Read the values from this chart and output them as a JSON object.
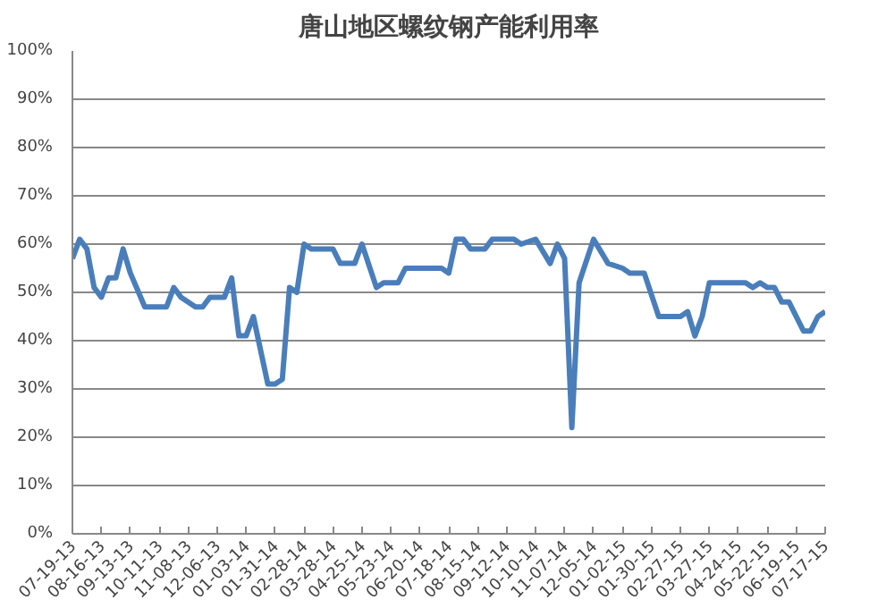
{
  "chart_data": {
    "type": "line",
    "title": "唐山地区螺纹钢产能利用率",
    "x": [
      "2013-07-19",
      "2013-07-26",
      "2013-08-02",
      "2013-08-09",
      "2013-08-16",
      "2013-08-23",
      "2013-08-30",
      "2013-09-06",
      "2013-09-13",
      "2013-09-27",
      "2013-10-18",
      "2013-10-25",
      "2013-11-01",
      "2013-11-15",
      "2013-11-22",
      "2013-11-29",
      "2013-12-13",
      "2013-12-20",
      "2013-12-27",
      "2014-01-03",
      "2014-01-10",
      "2014-01-24",
      "2014-01-31",
      "2014-02-07",
      "2014-02-14",
      "2014-02-21",
      "2014-02-28",
      "2014-03-07",
      "2014-03-28",
      "2014-04-04",
      "2014-04-18",
      "2014-04-25",
      "2014-05-09",
      "2014-05-16",
      "2014-05-30",
      "2014-06-06",
      "2014-07-11",
      "2014-07-18",
      "2014-07-25",
      "2014-08-01",
      "2014-08-08",
      "2014-08-22",
      "2014-08-29",
      "2014-09-19",
      "2014-09-26",
      "2014-10-10",
      "2014-10-24",
      "2014-10-31",
      "2014-11-07",
      "2014-11-14",
      "2014-11-21",
      "2014-12-05",
      "2014-12-19",
      "2015-01-02",
      "2015-01-09",
      "2015-01-23",
      "2015-02-06",
      "2015-02-27",
      "2015-03-06",
      "2015-03-13",
      "2015-03-20",
      "2015-03-27",
      "2015-05-01",
      "2015-05-08",
      "2015-05-15",
      "2015-05-22",
      "2015-05-29",
      "2015-06-05",
      "2015-06-12",
      "2015-06-26",
      "2015-07-03",
      "2015-07-10",
      "2015-07-17"
    ],
    "series": [
      {
        "color": "#4a7ebb",
        "values": [
          57,
          61,
          59,
          51,
          49,
          53,
          53,
          59,
          54,
          47,
          47,
          51,
          49,
          47,
          47,
          49,
          49,
          53,
          41,
          41,
          45,
          31,
          31,
          32,
          51,
          50,
          60,
          59,
          59,
          56,
          56,
          60,
          51,
          52,
          52,
          55,
          55,
          54,
          61,
          61,
          59,
          59,
          61,
          61,
          60,
          61,
          56,
          60,
          57,
          22,
          52,
          61,
          56,
          55,
          54,
          54,
          45,
          45,
          46,
          41,
          45,
          52,
          52,
          51,
          52,
          51,
          51,
          48,
          48,
          42,
          42,
          45,
          46
        ]
      }
    ],
    "ylim": [
      0,
      100
    ],
    "yticks": [
      {
        "value": 0,
        "label": "0%"
      },
      {
        "value": 10,
        "label": "10%"
      },
      {
        "value": 20,
        "label": "20%"
      },
      {
        "value": 30,
        "label": "30%"
      },
      {
        "value": 40,
        "label": "40%"
      },
      {
        "value": 50,
        "label": "50%"
      },
      {
        "value": 60,
        "label": "60%"
      },
      {
        "value": 70,
        "label": "70%"
      },
      {
        "value": 80,
        "label": "80%"
      },
      {
        "value": 90,
        "label": "90%"
      },
      {
        "value": 100,
        "label": "100%"
      }
    ],
    "xlim": [
      "2013-07-19",
      "2015-07-17"
    ],
    "xticks": [
      {
        "value": "2013-07-19",
        "label": "07-19-13"
      },
      {
        "value": "2013-08-16",
        "label": "08-16-13"
      },
      {
        "value": "2013-09-13",
        "label": "09-13-13"
      },
      {
        "value": "2013-10-11",
        "label": "10-11-13"
      },
      {
        "value": "2013-11-08",
        "label": "11-08-13"
      },
      {
        "value": "2013-12-06",
        "label": "12-06-13"
      },
      {
        "value": "2014-01-03",
        "label": "01-03-14"
      },
      {
        "value": "2014-01-31",
        "label": "01-31-14"
      },
      {
        "value": "2014-02-28",
        "label": "02-28-14"
      },
      {
        "value": "2014-03-28",
        "label": "03-28-14"
      },
      {
        "value": "2014-04-25",
        "label": "04-25-14"
      },
      {
        "value": "2014-05-23",
        "label": "05-23-14"
      },
      {
        "value": "2014-06-20",
        "label": "06-20-14"
      },
      {
        "value": "2014-07-18",
        "label": "07-18-14"
      },
      {
        "value": "2014-08-15",
        "label": "08-15-14"
      },
      {
        "value": "2014-09-12",
        "label": "09-12-14"
      },
      {
        "value": "2014-10-10",
        "label": "10-10-14"
      },
      {
        "value": "2014-11-07",
        "label": "11-07-14"
      },
      {
        "value": "2014-12-05",
        "label": "12-05-14"
      },
      {
        "value": "2015-01-02",
        "label": "01-02-15"
      },
      {
        "value": "2015-01-30",
        "label": "01-30-15"
      },
      {
        "value": "2015-02-27",
        "label": "02-27-15"
      },
      {
        "value": "2015-03-27",
        "label": "03-27-15"
      },
      {
        "value": "2015-04-24",
        "label": "04-24-15"
      },
      {
        "value": "2015-05-22",
        "label": "05-22-15"
      },
      {
        "value": "2015-06-19",
        "label": "06-19-15"
      },
      {
        "value": "2015-07-17",
        "label": "07-17-15"
      }
    ],
    "grid": "y",
    "marker": "none",
    "line_style": "solid"
  }
}
